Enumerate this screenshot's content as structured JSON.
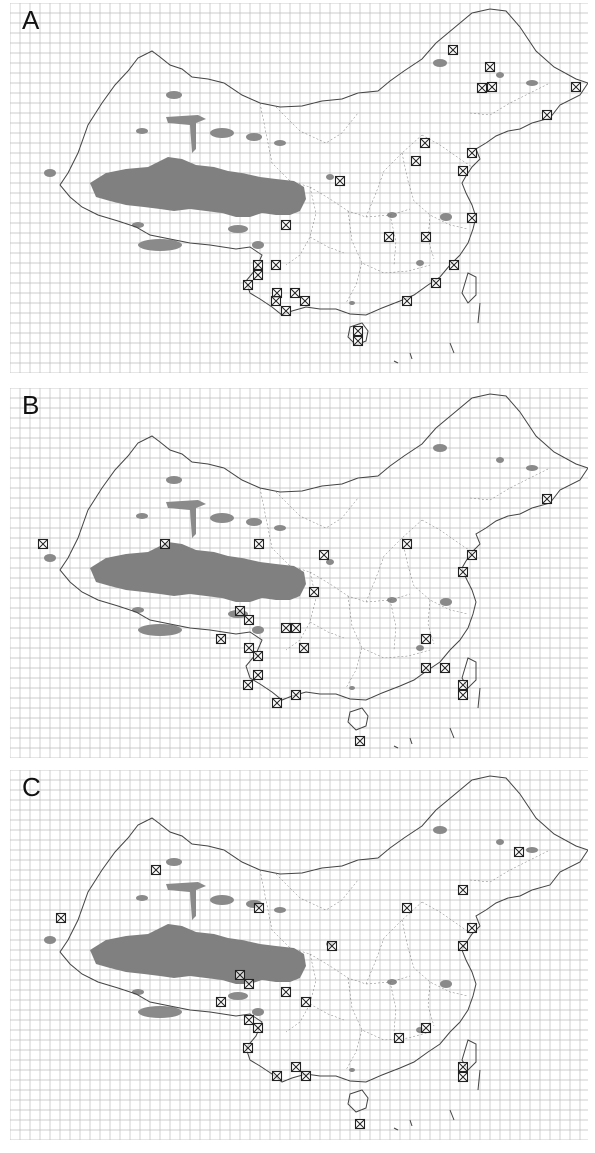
{
  "panels": [
    {
      "label": "A",
      "sites": [
        [
          443,
          47
        ],
        [
          480,
          64
        ],
        [
          472,
          85
        ],
        [
          482,
          84
        ],
        [
          566,
          84
        ],
        [
          537,
          112
        ],
        [
          415,
          140
        ],
        [
          462,
          150
        ],
        [
          406,
          158
        ],
        [
          453,
          168
        ],
        [
          330,
          178
        ],
        [
          462,
          215
        ],
        [
          276,
          222
        ],
        [
          379,
          234
        ],
        [
          416,
          234
        ],
        [
          266,
          262
        ],
        [
          248,
          262
        ],
        [
          248,
          272
        ],
        [
          238,
          282
        ],
        [
          444,
          262
        ],
        [
          267,
          290
        ],
        [
          285,
          290
        ],
        [
          295,
          298
        ],
        [
          426,
          280
        ],
        [
          397,
          298
        ],
        [
          266,
          298
        ],
        [
          276,
          308
        ],
        [
          348,
          328
        ],
        [
          348,
          338
        ]
      ]
    },
    {
      "label": "B",
      "sites": [
        [
          537,
          111
        ],
        [
          33,
          156
        ],
        [
          155,
          156
        ],
        [
          249,
          156
        ],
        [
          397,
          156
        ],
        [
          462,
          167
        ],
        [
          453,
          184
        ],
        [
          314,
          167
        ],
        [
          304,
          204
        ],
        [
          230,
          223
        ],
        [
          239,
          232
        ],
        [
          276,
          240
        ],
        [
          286,
          240
        ],
        [
          211,
          251
        ],
        [
          416,
          251
        ],
        [
          239,
          260
        ],
        [
          248,
          268
        ],
        [
          294,
          260
        ],
        [
          248,
          287
        ],
        [
          238,
          297
        ],
        [
          416,
          280
        ],
        [
          435,
          280
        ],
        [
          286,
          307
        ],
        [
          267,
          315
        ],
        [
          453,
          297
        ],
        [
          453,
          307
        ],
        [
          350,
          353
        ]
      ]
    },
    {
      "label": "C",
      "sites": [
        [
          509,
          82
        ],
        [
          146,
          100
        ],
        [
          453,
          120
        ],
        [
          249,
          138
        ],
        [
          397,
          138
        ],
        [
          51,
          148
        ],
        [
          462,
          158
        ],
        [
          453,
          176
        ],
        [
          322,
          176
        ],
        [
          230,
          205
        ],
        [
          239,
          214
        ],
        [
          276,
          222
        ],
        [
          296,
          232
        ],
        [
          211,
          232
        ],
        [
          239,
          250
        ],
        [
          248,
          258
        ],
        [
          416,
          258
        ],
        [
          389,
          268
        ],
        [
          238,
          278
        ],
        [
          286,
          297
        ],
        [
          267,
          306
        ],
        [
          296,
          306
        ],
        [
          453,
          297
        ],
        [
          453,
          307
        ],
        [
          350,
          354
        ]
      ]
    }
  ]
}
